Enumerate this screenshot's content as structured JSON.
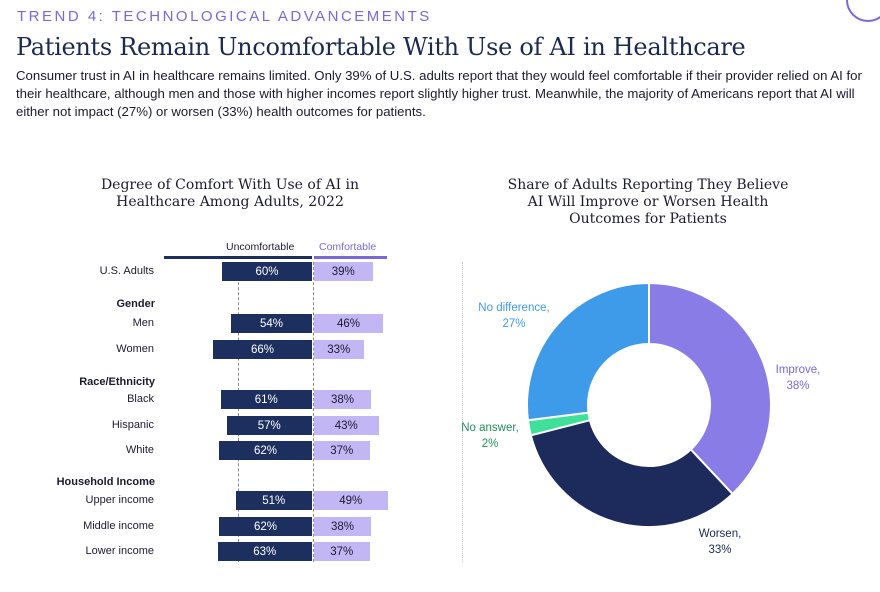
{
  "header": {
    "trend": "TREND 4: TECHNOLOGICAL ADVANCEMENTS",
    "title": "Patients Remain Uncomfortable With Use of AI in Healthcare",
    "intro": "Consumer trust in AI in healthcare remains limited. Only 39% of U.S. adults report that they would feel comfortable if their provider relied on AI for their healthcare, although men and those with higher incomes report slightly higher trust. Meanwhile, the majority of Americans report that AI will either not impact (27%) or worsen (33%) health outcomes for patients."
  },
  "colors": {
    "accent": "#7b68d8",
    "uncomfortable": "#1c2f5e",
    "comfortable": "#c2b7f4",
    "improve": "#8a7ce6",
    "worsen": "#1c2a5c",
    "no_answer": "#3fe09a",
    "no_difference": "#3d9be9"
  },
  "chart_data": [
    {
      "type": "bar",
      "orientation": "horizontal-diverging",
      "title": "Degree of Comfort With Use of AI in Healthcare Among Adults, 2022",
      "legend": [
        "Uncomfortable",
        "Comfortable"
      ],
      "groups": [
        "",
        "Gender",
        "Race/Ethnicity",
        "Household Income"
      ],
      "rows": [
        {
          "group": "",
          "label": "U.S. Adults",
          "uncomfortable": 60,
          "comfortable": 39
        },
        {
          "group": "Gender",
          "label": "Men",
          "uncomfortable": 54,
          "comfortable": 46
        },
        {
          "group": "Gender",
          "label": "Women",
          "uncomfortable": 66,
          "comfortable": 33
        },
        {
          "group": "Race/Ethnicity",
          "label": "Black",
          "uncomfortable": 61,
          "comfortable": 38
        },
        {
          "group": "Race/Ethnicity",
          "label": "Hispanic",
          "uncomfortable": 57,
          "comfortable": 43
        },
        {
          "group": "Race/Ethnicity",
          "label": "White",
          "uncomfortable": 62,
          "comfortable": 37
        },
        {
          "group": "Household Income",
          "label": "Upper income",
          "uncomfortable": 51,
          "comfortable": 49
        },
        {
          "group": "Household Income",
          "label": "Middle income",
          "uncomfortable": 62,
          "comfortable": 38
        },
        {
          "group": "Household Income",
          "label": "Lower income",
          "uncomfortable": 63,
          "comfortable": 37
        }
      ],
      "unit": "%"
    },
    {
      "type": "pie",
      "variant": "donut",
      "title": "Share of Adults Reporting They Believe AI Will Improve or Worsen Health Outcomes for Patients",
      "slices": [
        {
          "label": "Improve,",
          "value": 38,
          "display": "38%"
        },
        {
          "label": "Worsen,",
          "value": 33,
          "display": "33%"
        },
        {
          "label": "No answer,",
          "value": 2,
          "display": "2%"
        },
        {
          "label": "No difference,",
          "value": 27,
          "display": "27%"
        }
      ]
    }
  ]
}
